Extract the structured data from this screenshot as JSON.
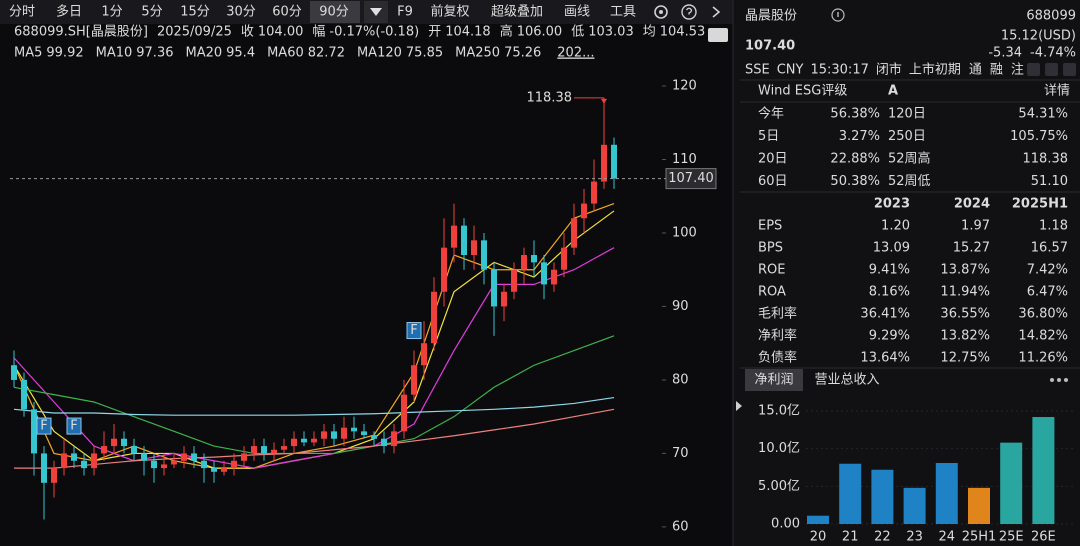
{
  "toolbar": {
    "items": [
      "分时",
      "多日",
      "1分",
      "5分",
      "15分",
      "30分",
      "60分",
      "90分",
      "F9",
      "前复权",
      "超级叠加",
      "画线",
      "工具"
    ]
  },
  "info_bar": [
    {
      "text": "688099.SH[晶晨股份]",
      "color": "#e0e0e0"
    },
    {
      "text": "2025/09/25",
      "color": "#e0e0e0"
    },
    {
      "text": "收",
      "color": "#e0e0e0"
    },
    {
      "text": "104.00",
      "color": "#1fc37a"
    },
    {
      "text": "幅",
      "color": "#e0e0e0"
    },
    {
      "text": "-0.17%(-0.18)",
      "color": "#1fc37a"
    },
    {
      "text": "开",
      "color": "#e0e0e0"
    },
    {
      "text": "104.18",
      "color": "#e0e0e0"
    },
    {
      "text": "高",
      "color": "#e0e0e0"
    },
    {
      "text": "106.00",
      "color": "#f23b3b"
    },
    {
      "text": "低",
      "color": "#e0e0e0"
    },
    {
      "text": "103.03",
      "color": "#1fc37a"
    },
    {
      "text": "均",
      "color": "#e0e0e0"
    },
    {
      "text": "104.53",
      "color": "#f23b3b"
    }
  ],
  "chart_data": [
    {
      "type": "candlestick",
      "ylim": [
        57.4,
        122.86
      ],
      "yticks": [
        60,
        70,
        80,
        90,
        100,
        110,
        120
      ],
      "grid": false,
      "up_color": "#f0403c",
      "down_color": "#35c6cf",
      "open": [
        82,
        80,
        76,
        70,
        66,
        68,
        70,
        69,
        68,
        70,
        71,
        72,
        71,
        70,
        69,
        68,
        68.5,
        69,
        70,
        69,
        68,
        67.5,
        68,
        69,
        70,
        71,
        70,
        70.5,
        71,
        72,
        71.5,
        72,
        73,
        72,
        73.5,
        73,
        72.5,
        72,
        71,
        73,
        78,
        82,
        85,
        92,
        98,
        101,
        97,
        99,
        95,
        90,
        92,
        95,
        97,
        96,
        93,
        95,
        98,
        102,
        104,
        107,
        112
      ],
      "high": [
        84,
        81,
        77,
        71,
        69,
        72,
        71,
        70,
        71,
        73,
        74,
        73,
        72,
        71,
        70,
        70,
        70,
        71,
        71,
        70,
        69,
        69,
        70,
        71,
        72,
        72,
        71.5,
        72,
        73,
        73,
        73,
        74,
        74,
        75,
        75,
        74,
        73,
        73,
        74,
        80,
        84,
        88,
        94,
        102,
        104,
        102,
        101,
        100,
        96,
        93,
        96,
        98,
        99,
        97,
        96,
        100,
        104,
        106,
        110,
        118.38,
        113
      ],
      "low": [
        79,
        75,
        67,
        61,
        64,
        67,
        68,
        67,
        67,
        69,
        70,
        70,
        69,
        67,
        66,
        67,
        68,
        68,
        68,
        66,
        66,
        67,
        67,
        68,
        69,
        69,
        69,
        70,
        70,
        71,
        71,
        71,
        71,
        71,
        72,
        72,
        71,
        70,
        70,
        72,
        77,
        80,
        84,
        90,
        96,
        95,
        95,
        93,
        86,
        88,
        91,
        93,
        94,
        91,
        92,
        94,
        97,
        100,
        103,
        106,
        106
      ],
      "close": [
        80,
        76,
        70,
        66,
        68,
        70,
        69,
        68,
        70,
        71,
        72,
        71,
        70,
        69,
        68,
        68.5,
        69,
        70,
        69,
        68,
        67.5,
        68,
        69,
        70,
        71,
        70,
        70.5,
        71,
        72,
        71.5,
        72,
        73,
        72,
        73.5,
        73,
        72.5,
        72,
        71,
        73,
        78,
        82,
        85,
        92,
        98,
        101,
        97,
        99,
        95,
        90,
        92,
        95,
        97,
        96,
        93,
        95,
        98,
        102,
        104,
        107,
        112,
        107.4
      ],
      "last_price": {
        "value": 107.4,
        "label": "107.40"
      },
      "series": [
        {
          "name": "MA5",
          "last": 99.92,
          "color": "#f5a623",
          "x": [
            0,
            4,
            8,
            12,
            16,
            20,
            24,
            28,
            32,
            36,
            40,
            44,
            48,
            52,
            56,
            60
          ],
          "values": [
            82,
            70,
            69,
            71,
            69,
            68,
            68,
            70,
            71,
            72.5,
            81,
            97,
            95,
            95,
            102,
            104
          ]
        },
        {
          "name": "MA10",
          "last": 97.36,
          "color": "#f2e33b",
          "x": [
            0,
            4,
            8,
            12,
            16,
            20,
            24,
            28,
            32,
            36,
            40,
            44,
            48,
            52,
            56,
            60
          ],
          "values": [
            82,
            73,
            69,
            70,
            70,
            68,
            68,
            69,
            70,
            72,
            77,
            92,
            96,
            94,
            99,
            103
          ]
        },
        {
          "name": "MA20",
          "last": 95.4,
          "color": "#e03ce0",
          "x": [
            0,
            4,
            8,
            12,
            16,
            20,
            24,
            28,
            32,
            36,
            40,
            44,
            48,
            52,
            56,
            60
          ],
          "values": [
            83,
            77,
            71,
            69,
            70,
            69,
            68,
            69,
            70,
            71,
            74,
            84,
            93,
            93,
            95,
            98
          ]
        },
        {
          "name": "MA60",
          "last": 82.72,
          "color": "#3cb44b",
          "x": [
            0,
            4,
            8,
            12,
            16,
            20,
            24,
            28,
            32,
            36,
            40,
            44,
            48,
            52,
            56,
            60
          ],
          "values": [
            79,
            78,
            77,
            75,
            73,
            71,
            70,
            70,
            70,
            71,
            72,
            75,
            79,
            82,
            84,
            86
          ]
        },
        {
          "name": "MA120",
          "last": 75.85,
          "color": "#8fd8e8",
          "x": [
            0,
            4,
            8,
            12,
            16,
            20,
            24,
            28,
            32,
            36,
            40,
            44,
            48,
            52,
            56,
            60
          ],
          "values": [
            76,
            75.5,
            75.5,
            75.3,
            75.2,
            75.2,
            75.2,
            75.2,
            75.3,
            75.4,
            75.6,
            75.8,
            76.0,
            76.3,
            76.8,
            77.6
          ]
        },
        {
          "name": "MA250",
          "last": 75.26,
          "color": "#f08080",
          "x": [
            0,
            4,
            8,
            12,
            16,
            20,
            24,
            28,
            32,
            36,
            40,
            44,
            48,
            52,
            56,
            60
          ],
          "values": [
            68,
            68,
            68.5,
            69,
            69.3,
            69.5,
            69.8,
            70,
            70.5,
            71,
            71.7,
            72.4,
            73.2,
            74,
            75,
            76
          ]
        }
      ],
      "markers": [
        {
          "label": "F",
          "x": 3
        },
        {
          "label": "F",
          "x": 6
        },
        {
          "label": "F",
          "x": 40
        }
      ],
      "legend_more": "202..."
    },
    {
      "type": "bar",
      "categories": [
        "20",
        "21",
        "22",
        "23",
        "24",
        "25H1",
        "25E",
        "26E"
      ],
      "values": [
        1.1,
        8.0,
        7.2,
        4.8,
        8.1,
        4.8,
        10.8,
        14.2
      ],
      "colors": [
        "#1f82c4",
        "#1f82c4",
        "#1f82c4",
        "#1f82c4",
        "#1f82c4",
        "#e0851c",
        "#2aa6a0",
        "#2aa6a0"
      ],
      "ylim": [
        0,
        15
      ],
      "yticks": [
        {
          "value": 0,
          "label": "0.00"
        },
        {
          "value": 5,
          "label": "5.00亿"
        },
        {
          "value": 10,
          "label": "10.0亿"
        },
        {
          "value": 15,
          "label": "15.0亿"
        }
      ]
    }
  ],
  "quote": {
    "name": "晶晨股份",
    "code": "688099",
    "price": {
      "value": 107.4,
      "label": "107.40"
    },
    "usd": "15.12(USD)",
    "change": "-5.34",
    "change_pct": "-4.74%",
    "status": [
      "SSE",
      "CNY",
      "15:30:17",
      "闭市",
      "上市初期",
      "通",
      "融",
      "注"
    ],
    "esg": {
      "label": "Wind ESG评级",
      "rating": "A",
      "link": "详情"
    },
    "stats": [
      [
        "今年",
        "56.38%",
        "120日",
        "54.31%"
      ],
      [
        "5日",
        "3.27%",
        "250日",
        "105.75%"
      ],
      [
        "20日",
        "22.88%",
        "52周高",
        "118.38"
      ],
      [
        "60日",
        "50.38%",
        "52周低",
        "51.10"
      ]
    ],
    "fin": {
      "columns": [
        "2023",
        "2024",
        "2025H1"
      ],
      "rows": [
        [
          "EPS",
          "1.20",
          "1.97",
          "1.18"
        ],
        [
          "BPS",
          "13.09",
          "15.27",
          "16.57"
        ],
        [
          "ROE",
          "9.41%",
          "13.87%",
          "7.42%"
        ],
        [
          "ROA",
          "8.16%",
          "11.94%",
          "6.47%"
        ],
        [
          "毛利率",
          "36.41%",
          "36.55%",
          "36.80%"
        ],
        [
          "净利率",
          "9.29%",
          "13.82%",
          "14.82%"
        ],
        [
          "负债率",
          "13.64%",
          "12.75%",
          "11.26%"
        ]
      ]
    },
    "tabs": [
      "净利润",
      "营业总收入"
    ]
  }
}
